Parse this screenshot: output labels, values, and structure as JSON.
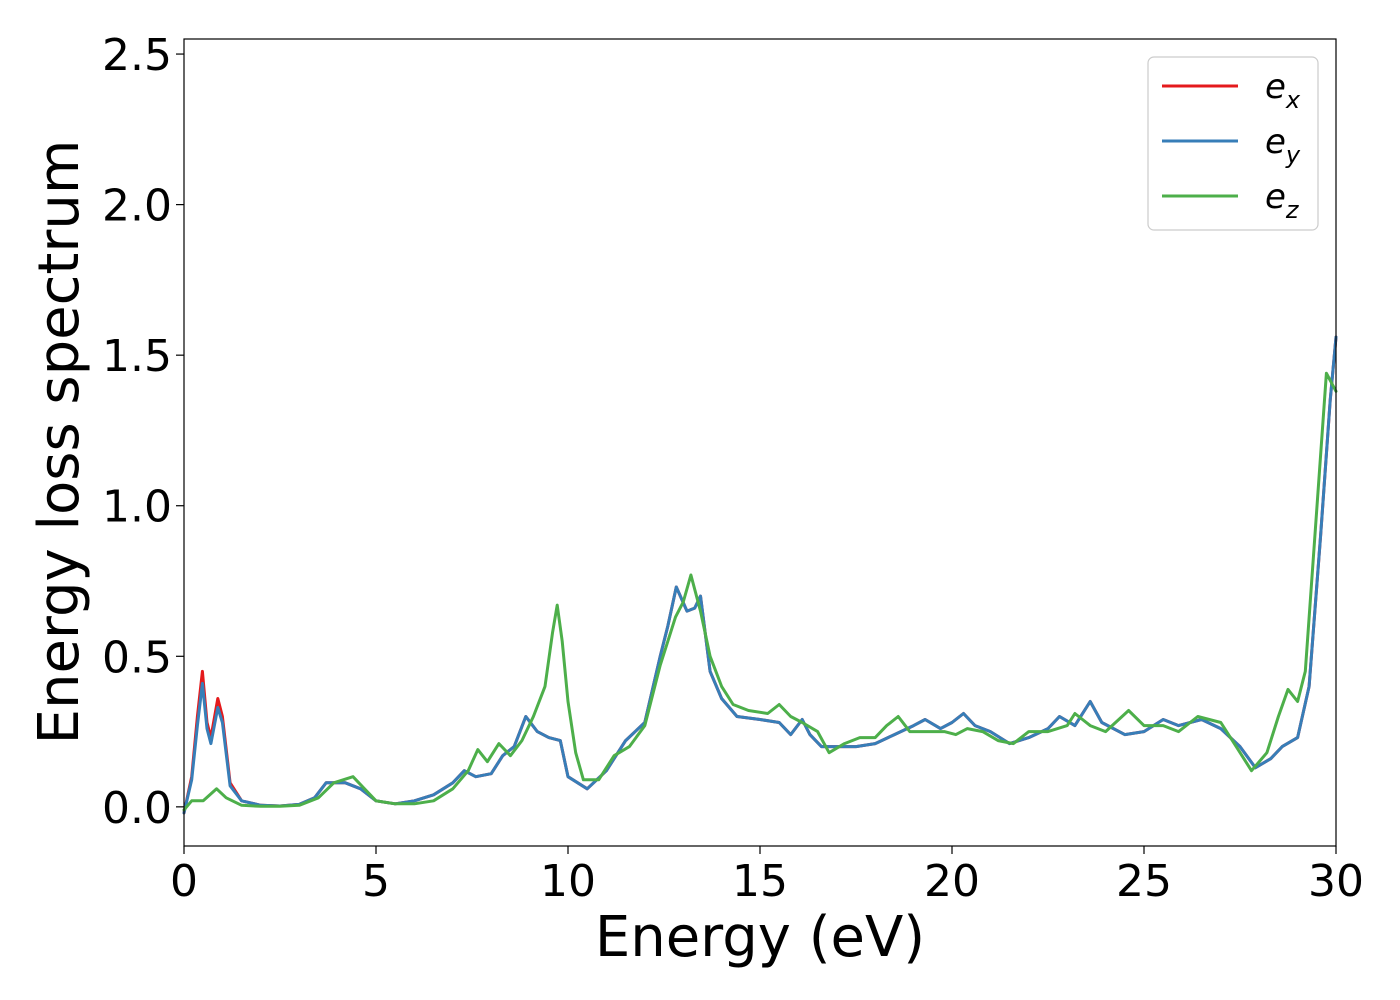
{
  "chart_data": {
    "type": "line",
    "title": "",
    "xlabel": "Energy (eV)",
    "ylabel": "Energy loss spectrum",
    "xlim": [
      0,
      30
    ],
    "ylim": [
      -0.13,
      2.55
    ],
    "x_ticks": [
      0,
      5,
      10,
      15,
      20,
      25,
      30
    ],
    "x_tick_labels": [
      "0",
      "5",
      "10",
      "15",
      "20",
      "25",
      "30"
    ],
    "y_ticks": [
      0.0,
      0.5,
      1.0,
      1.5,
      2.0,
      2.5
    ],
    "y_tick_labels": [
      "0.0",
      "0.5",
      "1.0",
      "1.5",
      "2.0",
      "2.5"
    ],
    "grid": false,
    "legend_position": "top-right",
    "series": [
      {
        "name_base": "e",
        "name_sub": "x",
        "color": "#e41a1c",
        "points": [
          [
            0,
            -0.02
          ],
          [
            0.2,
            0.1
          ],
          [
            0.35,
            0.3
          ],
          [
            0.48,
            0.45
          ],
          [
            0.6,
            0.28
          ],
          [
            0.7,
            0.23
          ],
          [
            0.88,
            0.36
          ],
          [
            1.0,
            0.3
          ],
          [
            1.2,
            0.08
          ],
          [
            1.5,
            0.02
          ],
          [
            2.0,
            0.005
          ],
          [
            2.5,
            0.003
          ],
          [
            3.0,
            0.008
          ],
          [
            3.4,
            0.03
          ],
          [
            3.7,
            0.08
          ],
          [
            4.2,
            0.08
          ],
          [
            4.6,
            0.06
          ],
          [
            5.0,
            0.02
          ],
          [
            5.5,
            0.01
          ],
          [
            6.0,
            0.02
          ],
          [
            6.5,
            0.04
          ],
          [
            7.0,
            0.08
          ],
          [
            7.3,
            0.12
          ],
          [
            7.6,
            0.1
          ],
          [
            8.0,
            0.11
          ],
          [
            8.3,
            0.17
          ],
          [
            8.6,
            0.2
          ],
          [
            8.9,
            0.3
          ],
          [
            9.2,
            0.25
          ],
          [
            9.5,
            0.23
          ],
          [
            9.8,
            0.22
          ],
          [
            10.0,
            0.1
          ],
          [
            10.5,
            0.06
          ],
          [
            11.0,
            0.12
          ],
          [
            11.5,
            0.22
          ],
          [
            12.0,
            0.28
          ],
          [
            12.4,
            0.5
          ],
          [
            12.6,
            0.6
          ],
          [
            12.82,
            0.73
          ],
          [
            13.1,
            0.65
          ],
          [
            13.3,
            0.66
          ],
          [
            13.45,
            0.7
          ],
          [
            13.7,
            0.45
          ],
          [
            14.0,
            0.36
          ],
          [
            14.4,
            0.3
          ],
          [
            15.0,
            0.29
          ],
          [
            15.5,
            0.28
          ],
          [
            15.8,
            0.24
          ],
          [
            16.1,
            0.29
          ],
          [
            16.3,
            0.24
          ],
          [
            16.6,
            0.2
          ],
          [
            17.0,
            0.2
          ],
          [
            17.5,
            0.2
          ],
          [
            18.0,
            0.21
          ],
          [
            18.5,
            0.24
          ],
          [
            19.0,
            0.27
          ],
          [
            19.3,
            0.29
          ],
          [
            19.7,
            0.26
          ],
          [
            20.0,
            0.28
          ],
          [
            20.3,
            0.31
          ],
          [
            20.6,
            0.27
          ],
          [
            21.0,
            0.25
          ],
          [
            21.5,
            0.21
          ],
          [
            22.0,
            0.23
          ],
          [
            22.5,
            0.26
          ],
          [
            22.8,
            0.3
          ],
          [
            23.2,
            0.27
          ],
          [
            23.6,
            0.35
          ],
          [
            23.9,
            0.28
          ],
          [
            24.5,
            0.24
          ],
          [
            25.0,
            0.25
          ],
          [
            25.5,
            0.29
          ],
          [
            25.9,
            0.27
          ],
          [
            26.5,
            0.29
          ],
          [
            27.0,
            0.26
          ],
          [
            27.5,
            0.2
          ],
          [
            27.9,
            0.13
          ],
          [
            28.3,
            0.16
          ],
          [
            28.6,
            0.2
          ],
          [
            29.0,
            0.23
          ],
          [
            29.3,
            0.4
          ],
          [
            29.6,
            0.9
          ],
          [
            29.85,
            1.35
          ],
          [
            30.0,
            1.56
          ]
        ]
      },
      {
        "name_base": "e",
        "name_sub": "y",
        "color": "#377eb8",
        "points": [
          [
            0,
            -0.02
          ],
          [
            0.2,
            0.09
          ],
          [
            0.35,
            0.27
          ],
          [
            0.48,
            0.41
          ],
          [
            0.6,
            0.26
          ],
          [
            0.7,
            0.21
          ],
          [
            0.88,
            0.33
          ],
          [
            1.0,
            0.28
          ],
          [
            1.2,
            0.07
          ],
          [
            1.5,
            0.02
          ],
          [
            2.0,
            0.005
          ],
          [
            2.5,
            0.003
          ],
          [
            3.0,
            0.008
          ],
          [
            3.4,
            0.03
          ],
          [
            3.7,
            0.08
          ],
          [
            4.2,
            0.08
          ],
          [
            4.6,
            0.06
          ],
          [
            5.0,
            0.02
          ],
          [
            5.5,
            0.01
          ],
          [
            6.0,
            0.02
          ],
          [
            6.5,
            0.04
          ],
          [
            7.0,
            0.08
          ],
          [
            7.3,
            0.12
          ],
          [
            7.6,
            0.1
          ],
          [
            8.0,
            0.11
          ],
          [
            8.3,
            0.17
          ],
          [
            8.6,
            0.2
          ],
          [
            8.9,
            0.3
          ],
          [
            9.2,
            0.25
          ],
          [
            9.5,
            0.23
          ],
          [
            9.8,
            0.22
          ],
          [
            10.0,
            0.1
          ],
          [
            10.5,
            0.06
          ],
          [
            11.0,
            0.12
          ],
          [
            11.5,
            0.22
          ],
          [
            12.0,
            0.28
          ],
          [
            12.4,
            0.5
          ],
          [
            12.6,
            0.6
          ],
          [
            12.82,
            0.73
          ],
          [
            13.1,
            0.65
          ],
          [
            13.3,
            0.66
          ],
          [
            13.45,
            0.7
          ],
          [
            13.7,
            0.45
          ],
          [
            14.0,
            0.36
          ],
          [
            14.4,
            0.3
          ],
          [
            15.0,
            0.29
          ],
          [
            15.5,
            0.28
          ],
          [
            15.8,
            0.24
          ],
          [
            16.1,
            0.29
          ],
          [
            16.3,
            0.24
          ],
          [
            16.6,
            0.2
          ],
          [
            17.0,
            0.2
          ],
          [
            17.5,
            0.2
          ],
          [
            18.0,
            0.21
          ],
          [
            18.5,
            0.24
          ],
          [
            19.0,
            0.27
          ],
          [
            19.3,
            0.29
          ],
          [
            19.7,
            0.26
          ],
          [
            20.0,
            0.28
          ],
          [
            20.3,
            0.31
          ],
          [
            20.6,
            0.27
          ],
          [
            21.0,
            0.25
          ],
          [
            21.5,
            0.21
          ],
          [
            22.0,
            0.23
          ],
          [
            22.5,
            0.26
          ],
          [
            22.8,
            0.3
          ],
          [
            23.2,
            0.27
          ],
          [
            23.6,
            0.35
          ],
          [
            23.9,
            0.28
          ],
          [
            24.5,
            0.24
          ],
          [
            25.0,
            0.25
          ],
          [
            25.5,
            0.29
          ],
          [
            25.9,
            0.27
          ],
          [
            26.5,
            0.29
          ],
          [
            27.0,
            0.26
          ],
          [
            27.5,
            0.2
          ],
          [
            27.9,
            0.13
          ],
          [
            28.3,
            0.16
          ],
          [
            28.6,
            0.2
          ],
          [
            29.0,
            0.23
          ],
          [
            29.3,
            0.4
          ],
          [
            29.6,
            0.9
          ],
          [
            29.85,
            1.35
          ],
          [
            30.0,
            1.56
          ]
        ]
      },
      {
        "name_base": "e",
        "name_sub": "z",
        "color": "#4daf4a",
        "points": [
          [
            0,
            -0.01
          ],
          [
            0.2,
            0.02
          ],
          [
            0.5,
            0.02
          ],
          [
            0.85,
            0.06
          ],
          [
            1.1,
            0.03
          ],
          [
            1.5,
            0.005
          ],
          [
            2.0,
            0.002
          ],
          [
            2.5,
            0.002
          ],
          [
            3.0,
            0.005
          ],
          [
            3.5,
            0.03
          ],
          [
            3.9,
            0.08
          ],
          [
            4.4,
            0.1
          ],
          [
            4.7,
            0.06
          ],
          [
            5.0,
            0.02
          ],
          [
            5.5,
            0.01
          ],
          [
            6.0,
            0.01
          ],
          [
            6.5,
            0.02
          ],
          [
            7.0,
            0.06
          ],
          [
            7.4,
            0.12
          ],
          [
            7.65,
            0.19
          ],
          [
            7.9,
            0.15
          ],
          [
            8.2,
            0.21
          ],
          [
            8.5,
            0.17
          ],
          [
            8.8,
            0.22
          ],
          [
            9.1,
            0.3
          ],
          [
            9.4,
            0.4
          ],
          [
            9.6,
            0.58
          ],
          [
            9.72,
            0.67
          ],
          [
            9.85,
            0.55
          ],
          [
            10.0,
            0.35
          ],
          [
            10.2,
            0.18
          ],
          [
            10.4,
            0.09
          ],
          [
            10.8,
            0.09
          ],
          [
            11.2,
            0.17
          ],
          [
            11.6,
            0.2
          ],
          [
            12.0,
            0.27
          ],
          [
            12.4,
            0.47
          ],
          [
            12.8,
            0.63
          ],
          [
            13.0,
            0.68
          ],
          [
            13.2,
            0.77
          ],
          [
            13.45,
            0.65
          ],
          [
            13.7,
            0.5
          ],
          [
            14.0,
            0.4
          ],
          [
            14.3,
            0.34
          ],
          [
            14.7,
            0.32
          ],
          [
            15.2,
            0.31
          ],
          [
            15.5,
            0.34
          ],
          [
            15.8,
            0.3
          ],
          [
            16.1,
            0.28
          ],
          [
            16.5,
            0.25
          ],
          [
            16.8,
            0.18
          ],
          [
            17.2,
            0.21
          ],
          [
            17.6,
            0.23
          ],
          [
            18.0,
            0.23
          ],
          [
            18.3,
            0.27
          ],
          [
            18.6,
            0.3
          ],
          [
            18.9,
            0.25
          ],
          [
            19.4,
            0.25
          ],
          [
            19.8,
            0.25
          ],
          [
            20.1,
            0.24
          ],
          [
            20.4,
            0.26
          ],
          [
            20.8,
            0.25
          ],
          [
            21.2,
            0.22
          ],
          [
            21.6,
            0.21
          ],
          [
            22.0,
            0.25
          ],
          [
            22.5,
            0.25
          ],
          [
            23.0,
            0.27
          ],
          [
            23.2,
            0.31
          ],
          [
            23.6,
            0.27
          ],
          [
            24.0,
            0.25
          ],
          [
            24.6,
            0.32
          ],
          [
            25.0,
            0.27
          ],
          [
            25.5,
            0.27
          ],
          [
            25.9,
            0.25
          ],
          [
            26.4,
            0.3
          ],
          [
            27.0,
            0.28
          ],
          [
            27.4,
            0.2
          ],
          [
            27.8,
            0.12
          ],
          [
            28.2,
            0.18
          ],
          [
            28.5,
            0.3
          ],
          [
            28.75,
            0.39
          ],
          [
            29.0,
            0.35
          ],
          [
            29.2,
            0.45
          ],
          [
            29.45,
            0.9
          ],
          [
            29.75,
            1.44
          ],
          [
            30.0,
            1.38
          ]
        ]
      }
    ]
  }
}
